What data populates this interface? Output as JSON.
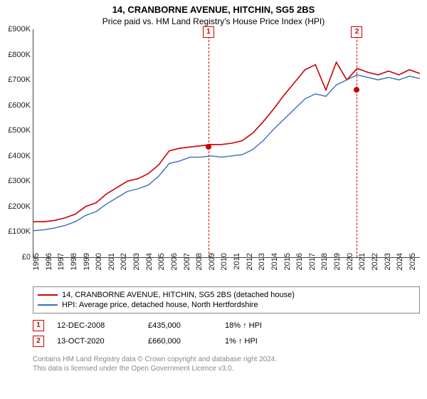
{
  "title": "14, CRANBORNE AVENUE, HITCHIN, SG5 2BS",
  "subtitle": "Price paid vs. HM Land Registry's House Price Index (HPI)",
  "chart": {
    "type": "line",
    "background_color": "#ffffff",
    "axis_color": "#444444",
    "tick_fontsize": 11,
    "ylabel_prefix": "£",
    "ylim": [
      0,
      900
    ],
    "ytick_step": 100,
    "yticks": [
      "£0",
      "£100K",
      "£200K",
      "£300K",
      "£400K",
      "£500K",
      "£600K",
      "£700K",
      "£800K",
      "£900K"
    ],
    "xlim": [
      1995,
      2025.8
    ],
    "xticks": [
      1995,
      1996,
      1997,
      1998,
      1999,
      2000,
      2001,
      2002,
      2003,
      2004,
      2005,
      2006,
      2007,
      2008,
      2009,
      2010,
      2011,
      2012,
      2013,
      2014,
      2015,
      2016,
      2017,
      2018,
      2019,
      2020,
      2021,
      2022,
      2023,
      2024,
      2025
    ],
    "series": [
      {
        "name": "14, CRANBORNE AVENUE, HITCHIN, SG5 2BS (detached house)",
        "color": "#cc0000",
        "line_width": 1.6,
        "y": [
          140,
          140,
          145,
          155,
          170,
          200,
          215,
          250,
          275,
          300,
          310,
          330,
          365,
          420,
          430,
          435,
          440,
          445,
          445,
          450,
          460,
          490,
          535,
          585,
          640,
          690,
          740,
          760,
          660,
          770,
          700,
          745,
          730,
          720,
          735,
          720,
          740,
          725
        ]
      },
      {
        "name": "HPI: Average price, detached house, North Hertfordshire",
        "color": "#3a6fb7",
        "line_width": 1.4,
        "y": [
          105,
          108,
          115,
          125,
          140,
          165,
          180,
          210,
          235,
          260,
          270,
          285,
          320,
          370,
          380,
          395,
          395,
          400,
          395,
          400,
          405,
          425,
          460,
          505,
          545,
          585,
          625,
          645,
          635,
          680,
          700,
          720,
          710,
          700,
          710,
          700,
          715,
          705
        ]
      }
    ],
    "sale_markers": [
      {
        "id": "1",
        "x": 2008.95,
        "y": 435,
        "color": "#cc0000"
      },
      {
        "id": "2",
        "x": 2020.78,
        "y": 660,
        "color": "#cc0000"
      }
    ]
  },
  "legend": {
    "rows": [
      {
        "color": "#cc0000",
        "label": "14, CRANBORNE AVENUE, HITCHIN, SG5 2BS (detached house)"
      },
      {
        "color": "#3a6fb7",
        "label": "HPI: Average price, detached house, North Hertfordshire"
      }
    ]
  },
  "sales": [
    {
      "id": "1",
      "color": "#cc0000",
      "date": "12-DEC-2008",
      "price": "£435,000",
      "delta": "18% ↑ HPI"
    },
    {
      "id": "2",
      "color": "#cc0000",
      "date": "13-OCT-2020",
      "price": "£660,000",
      "delta": "1% ↑ HPI"
    }
  ],
  "footer": {
    "line1": "Contains HM Land Registry data © Crown copyright and database right 2024.",
    "line2": "This data is licensed under the Open Government Licence v3.0."
  }
}
